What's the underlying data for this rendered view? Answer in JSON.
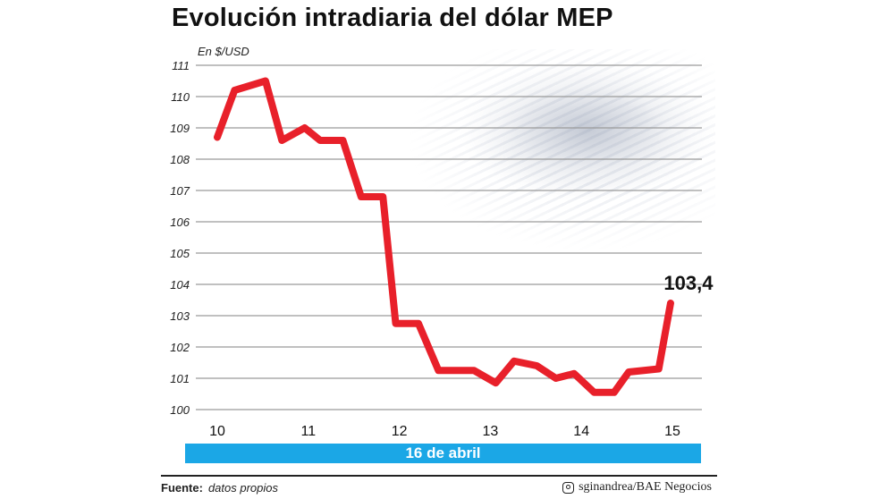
{
  "chart_data": {
    "type": "line",
    "title": "Evolución intradiaria del dólar MEP",
    "ylabel": "En $/USD",
    "xlabel": "16 de abril",
    "x_ticks": [
      "10",
      "11",
      "12",
      "13",
      "14",
      "15"
    ],
    "y_ticks": [
      "100",
      "101",
      "102",
      "103",
      "104",
      "105",
      "106",
      "107",
      "108",
      "109",
      "110",
      "111"
    ],
    "xlim": [
      10,
      15
    ],
    "ylim": [
      100,
      111
    ],
    "grid": "horizontal",
    "line_color": "#e8202a",
    "band_color": "#1ba7e6",
    "x": [
      10.0,
      10.19,
      10.53,
      10.71,
      10.96,
      11.13,
      11.38,
      11.58,
      11.82,
      11.96,
      12.21,
      12.43,
      12.82,
      13.06,
      13.26,
      13.51,
      13.72,
      13.92,
      14.14,
      14.36,
      14.52,
      14.85,
      14.98
    ],
    "values": [
      108.7,
      110.2,
      110.5,
      108.6,
      109.0,
      108.6,
      108.6,
      106.8,
      106.8,
      102.75,
      102.75,
      101.25,
      101.25,
      100.85,
      101.55,
      101.4,
      101.0,
      101.15,
      100.55,
      100.55,
      101.2,
      101.3,
      103.4
    ],
    "annotation": "103,4"
  },
  "footer": {
    "source_label": "Fuente:",
    "source_value": "datos propios",
    "credit": "sginandrea/BAE Negocios",
    "credit_icon": "instagram-icon"
  }
}
